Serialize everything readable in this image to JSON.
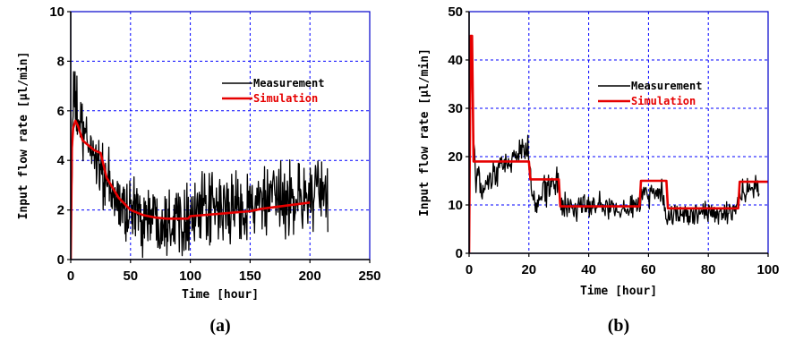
{
  "colors": {
    "measurement": "#000000",
    "simulation": "#e60000",
    "grid": "#0000ff",
    "frame": "#0000cc"
  },
  "chart_data": [
    {
      "type": "line",
      "caption": "(a)",
      "xlabel": "Time [hour]",
      "ylabel": "Input flow rate [µl/min]",
      "xlim": [
        0,
        250
      ],
      "ylim": [
        0,
        10
      ],
      "xticks": [
        0,
        50,
        100,
        150,
        200,
        250
      ],
      "yticks": [
        0,
        2,
        4,
        6,
        8,
        10
      ],
      "grid": true,
      "legend_position": "top-right",
      "series": [
        {
          "name": "Measurement",
          "color": "#000000",
          "noisy": true,
          "x": [
            0,
            2,
            5,
            10,
            20,
            30,
            40,
            50,
            60,
            80,
            100,
            120,
            140,
            160,
            180,
            200,
            215
          ],
          "y": [
            0,
            6.5,
            6.0,
            5.0,
            4.3,
            3.0,
            2.2,
            2.0,
            1.8,
            1.7,
            1.8,
            2.0,
            2.1,
            2.3,
            2.4,
            2.6,
            2.5
          ],
          "spread": [
            0,
            1.3,
            1.3,
            1.1,
            1.1,
            1.2,
            1.3,
            1.3,
            1.3,
            1.3,
            1.3,
            1.3,
            1.3,
            1.3,
            1.3,
            1.3,
            1.3
          ]
        },
        {
          "name": "Simulation",
          "color": "#e60000",
          "x": [
            0,
            1,
            2,
            4,
            6,
            10,
            15,
            20,
            25,
            30,
            40,
            50,
            60,
            70,
            80,
            90,
            98,
            100,
            150,
            160,
            200
          ],
          "y": [
            0,
            4.5,
            5.3,
            5.6,
            5.4,
            4.8,
            4.6,
            4.4,
            4.3,
            3.3,
            2.5,
            2.0,
            1.8,
            1.7,
            1.65,
            1.65,
            1.65,
            1.75,
            1.95,
            2.05,
            2.3
          ]
        }
      ]
    },
    {
      "type": "line",
      "caption": "(b)",
      "xlabel": "Time [hour]",
      "ylabel": "Input flow rate [µl/min]",
      "xlim": [
        0,
        100
      ],
      "ylim": [
        0,
        50
      ],
      "xticks": [
        0,
        20,
        40,
        60,
        80,
        100
      ],
      "yticks": [
        0,
        10,
        20,
        30,
        40,
        50
      ],
      "grid": true,
      "legend_position": "top-right",
      "series": [
        {
          "name": "Measurement",
          "color": "#000000",
          "noisy": true,
          "x": [
            0,
            0.5,
            1,
            2,
            5,
            10,
            15,
            19,
            20,
            21,
            25,
            30,
            31,
            40,
            50,
            57,
            58,
            65,
            66,
            70,
            80,
            89,
            90,
            95,
            97
          ],
          "y": [
            0,
            46,
            35,
            15,
            13,
            17,
            20,
            22,
            20,
            10,
            13,
            15,
            9,
            10,
            9,
            10,
            13,
            12,
            8,
            8,
            8,
            9,
            12,
            13,
            13
          ],
          "spread": [
            0,
            0,
            4,
            3,
            3,
            3,
            3,
            3,
            3,
            3,
            3,
            3,
            2.5,
            2.5,
            2.5,
            2.5,
            2.5,
            2.5,
            2.5,
            2.5,
            2.5,
            2.5,
            2.5,
            2.5,
            2.5
          ]
        },
        {
          "name": "Simulation",
          "color": "#e60000",
          "x": [
            0,
            0.5,
            1,
            1.5,
            20,
            20.5,
            30,
            30.5,
            57,
            57.5,
            66,
            66.5,
            90,
            90.5,
            100
          ],
          "y": [
            0,
            45,
            45,
            19,
            19,
            15.3,
            15.3,
            9.7,
            9.7,
            15,
            15,
            9.3,
            9.3,
            14.8,
            14.8
          ]
        }
      ]
    }
  ]
}
